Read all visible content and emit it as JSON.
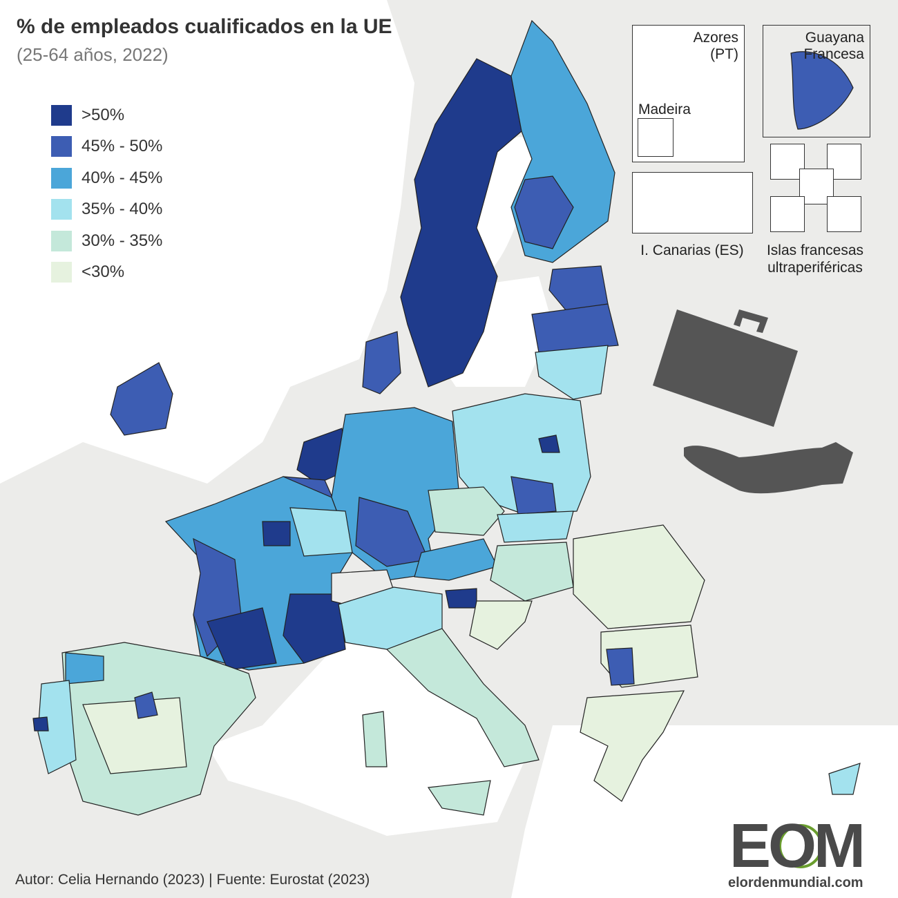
{
  "title": "% de empleados cualificados en la UE",
  "subtitle": "(25-64 años, 2022)",
  "legend": [
    {
      "label": ">50%",
      "color": "#1f3b8c"
    },
    {
      "label": "45% - 50%",
      "color": "#3d5db3"
    },
    {
      "label": "40% - 45%",
      "color": "#4ba6d9"
    },
    {
      "label": "35% - 40%",
      "color": "#a3e2ee"
    },
    {
      "label": "30% - 35%",
      "color": "#c4e8da"
    },
    {
      "label": "<30%",
      "color": "#e6f2df"
    }
  ],
  "insets": {
    "azores": "Azores\n(PT)",
    "madeira": "Madeira",
    "guyana": "Guayana\nFrancesa",
    "canarias": "I. Canarias (ES)",
    "islas_francesas": "Islas francesas\nultraperiféricas"
  },
  "credit": "Autor: Celia Hernando (2023) | Fuente: Eurostat (2023)",
  "logo": {
    "text": "EOM",
    "url": "elordenmundial.com"
  },
  "icons": [
    "briefcase-icon",
    "open-hand-icon"
  ],
  "colors": {
    "ocean": "#ffffff",
    "non_eu_land": "#ececea",
    "border": "#222222",
    "icon": "#555555"
  }
}
